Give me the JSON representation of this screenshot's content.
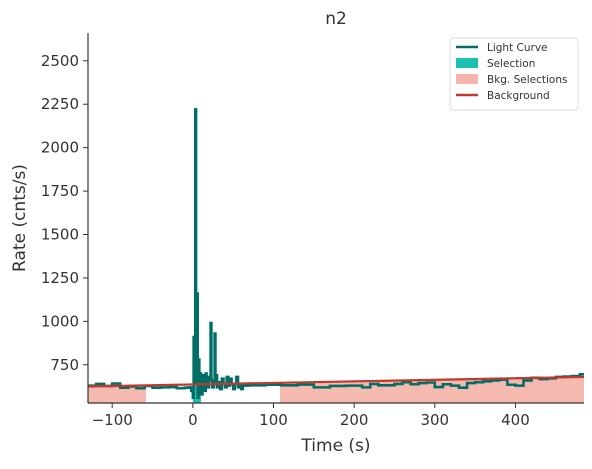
{
  "chart_data": {
    "type": "line",
    "title": "n2",
    "xlabel": "Time (s)",
    "ylabel": "Rate (cnts/s)",
    "xlim": [
      -130,
      485
    ],
    "ylim": [
      530,
      2660
    ],
    "xticks": [
      -100,
      0,
      100,
      200,
      300,
      400
    ],
    "yticks": [
      750,
      1000,
      1250,
      1500,
      1750,
      2000,
      2250,
      2500
    ],
    "legend": {
      "position": "top-right",
      "entries": [
        {
          "label": "Light Curve",
          "kind": "line",
          "color": "#006d67"
        },
        {
          "label": "Selection",
          "kind": "patch",
          "color": "#1cc0b2"
        },
        {
          "label": "Bkg. Selections",
          "kind": "patch",
          "color": "#f4b5ab"
        },
        {
          "label": "Background",
          "kind": "line",
          "color": "#c0392b"
        }
      ]
    },
    "series": [
      {
        "name": "Light Curve",
        "color": "#006d67",
        "step": "post",
        "points": [
          [
            -130,
            630
          ],
          [
            -120,
            640
          ],
          [
            -110,
            628
          ],
          [
            -100,
            642
          ],
          [
            -90,
            618
          ],
          [
            -80,
            625
          ],
          [
            -70,
            615
          ],
          [
            -60,
            628
          ],
          [
            -50,
            618
          ],
          [
            -40,
            620
          ],
          [
            -30,
            622
          ],
          [
            -20,
            615
          ],
          [
            -10,
            618
          ],
          [
            -5,
            620
          ],
          [
            -2,
            600
          ],
          [
            0,
            560
          ],
          [
            1,
            910
          ],
          [
            2,
            650
          ],
          [
            3,
            2220
          ],
          [
            4,
            640
          ],
          [
            5,
            1160
          ],
          [
            6,
            560
          ],
          [
            7,
            780
          ],
          [
            8,
            610
          ],
          [
            9,
            700
          ],
          [
            10,
            580
          ],
          [
            12,
            640
          ],
          [
            13,
            690
          ],
          [
            14,
            620
          ],
          [
            15,
            600
          ],
          [
            16,
            700
          ],
          [
            17,
            640
          ],
          [
            18,
            680
          ],
          [
            19,
            620
          ],
          [
            20,
            660
          ],
          [
            21,
            670
          ],
          [
            22,
            990
          ],
          [
            23,
            660
          ],
          [
            24,
            620
          ],
          [
            26,
            640
          ],
          [
            27,
            930
          ],
          [
            28,
            640
          ],
          [
            29,
            690
          ],
          [
            30,
            620
          ],
          [
            32,
            650
          ],
          [
            34,
            610
          ],
          [
            36,
            670
          ],
          [
            38,
            640
          ],
          [
            40,
            620
          ],
          [
            42,
            680
          ],
          [
            44,
            630
          ],
          [
            46,
            670
          ],
          [
            48,
            640
          ],
          [
            50,
            610
          ],
          [
            52,
            640
          ],
          [
            54,
            680
          ],
          [
            56,
            620
          ],
          [
            58,
            640
          ],
          [
            60,
            610
          ],
          [
            62,
            630
          ],
          [
            70,
            632
          ],
          [
            90,
            635
          ],
          [
            110,
            632
          ],
          [
            130,
            636
          ],
          [
            150,
            620
          ],
          [
            170,
            628
          ],
          [
            190,
            630
          ],
          [
            210,
            620
          ],
          [
            220,
            640
          ],
          [
            230,
            632
          ],
          [
            250,
            640
          ],
          [
            260,
            650
          ],
          [
            270,
            638
          ],
          [
            280,
            645
          ],
          [
            290,
            648
          ],
          [
            300,
            622
          ],
          [
            310,
            638
          ],
          [
            320,
            630
          ],
          [
            330,
            618
          ],
          [
            340,
            645
          ],
          [
            350,
            650
          ],
          [
            360,
            655
          ],
          [
            370,
            660
          ],
          [
            380,
            665
          ],
          [
            390,
            635
          ],
          [
            400,
            630
          ],
          [
            410,
            660
          ],
          [
            420,
            675
          ],
          [
            430,
            668
          ],
          [
            440,
            672
          ],
          [
            450,
            680
          ],
          [
            460,
            682
          ],
          [
            470,
            685
          ],
          [
            480,
            695
          ],
          [
            485,
            695
          ]
        ]
      },
      {
        "name": "Background",
        "color": "#c0392b",
        "points": [
          [
            -130,
            625
          ],
          [
            485,
            680
          ]
        ]
      }
    ],
    "selection_regions": [
      {
        "name": "Selection",
        "color": "#1cc0b2",
        "x": [
          0,
          10
        ]
      }
    ],
    "bkg_selection_regions": [
      {
        "name": "Bkg. Selections",
        "color": "#f4b5ab",
        "x": [
          -130,
          -58
        ]
      },
      {
        "name": "Bkg. Selections",
        "color": "#f4b5ab",
        "x": [
          108,
          485
        ]
      }
    ],
    "grid": false
  }
}
